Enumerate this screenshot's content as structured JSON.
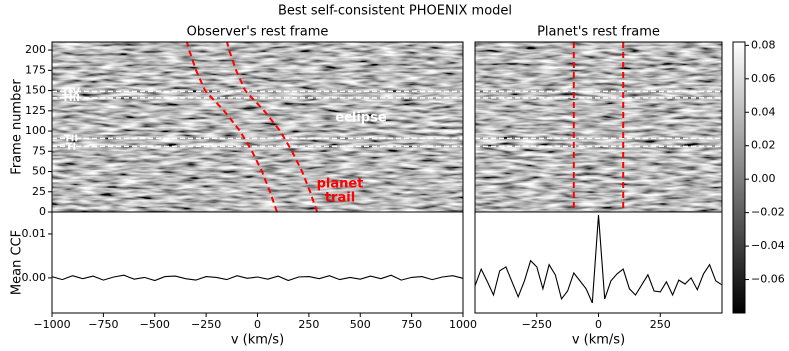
{
  "title": "Best self-consistent PHOENIX model",
  "chart_data": [
    {
      "type": "heatmap",
      "title": "Observer's rest frame",
      "ylabel": "Frame number",
      "colormap": "gray",
      "xlim": [
        -1000,
        1000
      ],
      "ylim": [
        0,
        210
      ],
      "yticks": [
        0,
        25,
        50,
        75,
        100,
        125,
        150,
        175,
        200
      ],
      "transit_color": "#ffffff",
      "transits": [
        {
          "label": "TIV",
          "frame": 149
        },
        {
          "label": "TIII",
          "frame": 141
        },
        {
          "label": "TII",
          "frame": 91
        },
        {
          "label": "TI",
          "frame": 81
        }
      ],
      "trails": [
        {
          "color": "#ff0000",
          "frames": [
            0,
            25,
            50,
            75,
            100,
            125,
            150,
            175,
            200,
            210
          ],
          "velocities": [
            95,
            61,
            22,
            -27,
            -85,
            -163,
            -255,
            -299,
            -333,
            -343
          ]
        },
        {
          "color": "#ff0000",
          "frames": [
            0,
            25,
            50,
            75,
            100,
            125,
            150,
            175,
            200,
            210
          ],
          "velocities": [
            290,
            256,
            217,
            168,
            110,
            32,
            -60,
            -104,
            -138,
            -148
          ]
        }
      ],
      "annotations": [
        {
          "text": [
            "eclipse"
          ],
          "color": "#ffffff"
        },
        {
          "text": [
            "planet",
            "trail"
          ],
          "color": "#ff0000"
        }
      ]
    },
    {
      "type": "heatmap",
      "title": "Planet's rest frame",
      "colormap": "gray",
      "xlim": [
        -500,
        500
      ],
      "ylim": [
        0,
        210
      ],
      "transit_color": "#ffffff",
      "transits": [
        {
          "frame": 149
        },
        {
          "frame": 141
        },
        {
          "frame": 91
        },
        {
          "frame": 81
        }
      ],
      "vlines": [
        -100,
        100
      ],
      "vline_color": "#ff0000"
    },
    {
      "type": "line",
      "xlabel": "v (km/s)",
      "ylabel": "Mean CCF",
      "color": "#000000",
      "xlim": [
        -1000,
        1000
      ],
      "ylim": [
        -0.008,
        0.015
      ],
      "xticks": [
        {
          "value": -1000,
          "label": "−1000"
        },
        {
          "value": -750,
          "label": "−750"
        },
        {
          "value": -500,
          "label": "−500"
        },
        {
          "value": -250,
          "label": "−250"
        },
        0,
        250,
        500,
        750,
        1000
      ],
      "yticks": [
        {
          "value": 0,
          "label": "0.00"
        },
        0.01
      ],
      "x": [
        -1000,
        -950,
        -900,
        -850,
        -800,
        -750,
        -700,
        -650,
        -600,
        -550,
        -500,
        -450,
        -400,
        -350,
        -300,
        -250,
        -200,
        -150,
        -100,
        -50,
        0,
        50,
        100,
        150,
        200,
        250,
        300,
        350,
        400,
        450,
        500,
        550,
        600,
        650,
        700,
        750,
        800,
        850,
        900,
        950,
        1000
      ],
      "values": [
        0.0003,
        -0.0004,
        0.0005,
        -0.0002,
        0.0004,
        -0.0005,
        0.0002,
        0.0006,
        -0.0003,
        0.0001,
        -0.0006,
        0.0003,
        0.0004,
        -0.0002,
        -0.0005,
        0.0003,
        0.0001,
        -0.0004,
        0.0005,
        -0.0001,
        0.0002,
        -0.0003,
        0.0004,
        -0.0006,
        0.0002,
        0.0003,
        -0.0002,
        0.0005,
        -0.0004,
        0.0001,
        -0.0003,
        0.0004,
        -0.0002,
        0.0006,
        -0.0005,
        0.0001,
        0.0003,
        -0.0004,
        0.0002,
        0.0005,
        -0.0001
      ]
    },
    {
      "type": "line",
      "xlabel": "v (km/s)",
      "color": "#000000",
      "xlim": [
        -500,
        500
      ],
      "ylim": [
        -0.008,
        0.015
      ],
      "xticks": [
        {
          "value": -250,
          "label": "−250"
        },
        0,
        250
      ],
      "x": [
        -500,
        -475,
        -450,
        -425,
        -400,
        -375,
        -350,
        -325,
        -300,
        -275,
        -250,
        -225,
        -200,
        -175,
        -150,
        -125,
        -100,
        -75,
        -50,
        -25,
        0,
        25,
        50,
        75,
        100,
        125,
        150,
        175,
        200,
        225,
        250,
        275,
        300,
        325,
        350,
        375,
        400,
        425,
        450,
        475,
        500
      ],
      "values": [
        -0.0018,
        0.002,
        -0.0009,
        -0.0039,
        0.0016,
        0.0025,
        -0.0009,
        -0.0043,
        -0.0007,
        0.0039,
        0.0025,
        -0.0025,
        0.003,
        0.0007,
        -0.0048,
        -0.003,
        0.0011,
        -0.0007,
        -0.0025,
        -0.0057,
        0.0143,
        -0.0048,
        -0.0007,
        0.0009,
        0.002,
        -0.0025,
        -0.0039,
        -0.0016,
        0.0007,
        -0.003,
        -0.0032,
        -0.0009,
        -0.0039,
        -0.0005,
        -0.0014,
        0,
        -0.0027,
        0.0009,
        0.003,
        -0.0007,
        -0.0016
      ]
    },
    {
      "type": "colorbar",
      "colormap": "gray",
      "ylim": [
        -0.08,
        0.082
      ],
      "yticks": [
        0.08,
        0.06,
        0.04,
        0.02,
        {
          "value": 0,
          "label": "0.00"
        },
        {
          "value": -0.02,
          "label": "−0.02"
        },
        {
          "value": -0.04,
          "label": "−0.04"
        },
        {
          "value": -0.06,
          "label": "−0.06"
        }
      ]
    }
  ]
}
